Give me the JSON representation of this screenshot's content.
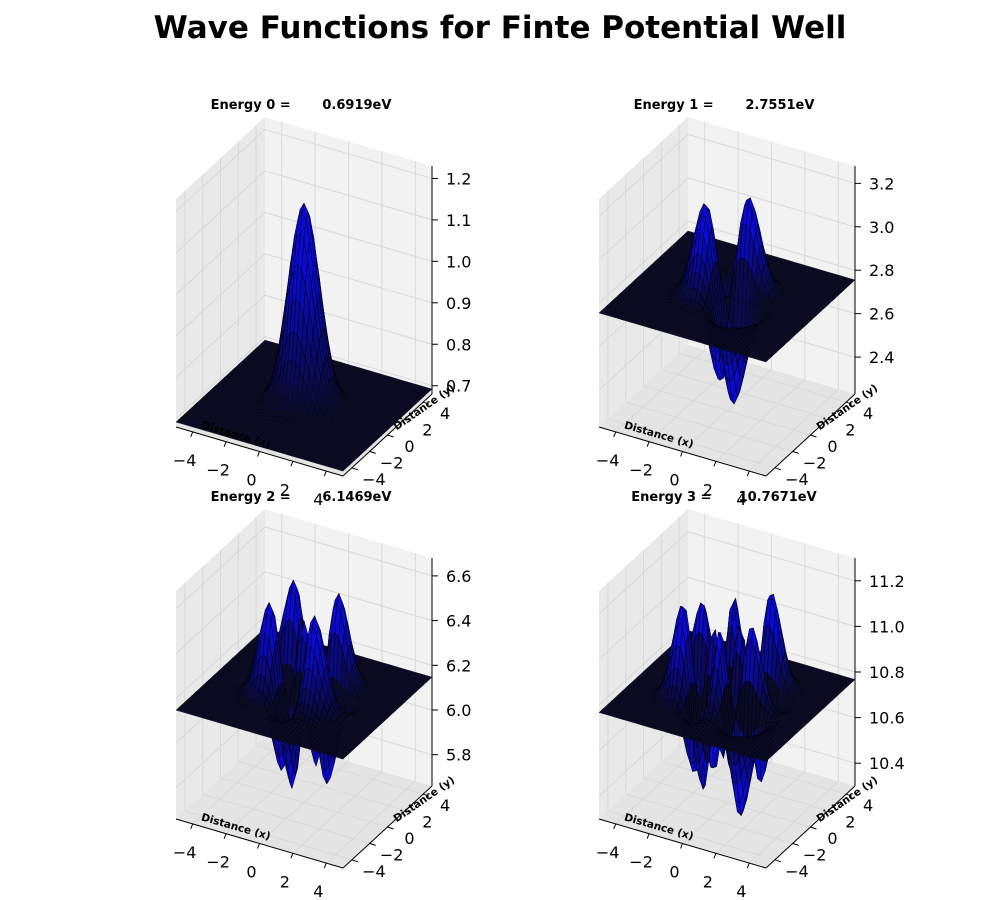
{
  "title": "Wave Functions for Finte Potential Well",
  "colors": {
    "surface": "#0a0ac8",
    "edge": "#000000",
    "pane": "#f2f2f2",
    "grid": "#d9d9d9"
  },
  "chart_data": [
    {
      "type": "surface3d",
      "title": "Energy 0 =       0.6919eV",
      "xlabel": "Distance (x)",
      "ylabel": "Distance (y)",
      "xticks": [
        "−4",
        "−2",
        "0",
        "2",
        "4"
      ],
      "yticks": [
        "−4",
        "−2",
        "0",
        "2",
        "4"
      ],
      "zticks": [
        "0.7",
        "0.8",
        "0.9",
        "1.0",
        "1.1",
        "1.2"
      ],
      "xlim": [
        -5,
        5
      ],
      "ylim": [
        -5,
        5
      ],
      "zlim": [
        0.68,
        1.23
      ],
      "energy_eV": 0.6919,
      "state": 0
    },
    {
      "type": "surface3d",
      "title": "Energy 1 =       2.7551eV",
      "xlabel": "Distance (x)",
      "ylabel": "Distance (y)",
      "xticks": [
        "−4",
        "−2",
        "0",
        "2",
        "4"
      ],
      "yticks": [
        "−4",
        "−2",
        "0",
        "2",
        "4"
      ],
      "zticks": [
        "2.4",
        "2.6",
        "2.8",
        "3.0",
        "3.2"
      ],
      "xlim": [
        -5,
        5
      ],
      "ylim": [
        -5,
        5
      ],
      "zlim": [
        2.23,
        3.28
      ],
      "energy_eV": 2.7551,
      "state": 1
    },
    {
      "type": "surface3d",
      "title": "Energy 2 =       6.1469eV",
      "xlabel": "Distance (x)",
      "ylabel": "Distance (y)",
      "xticks": [
        "−4",
        "−2",
        "0",
        "2",
        "4"
      ],
      "yticks": [
        "−4",
        "−2",
        "0",
        "2",
        "4"
      ],
      "zticks": [
        "5.8",
        "6.0",
        "6.2",
        "6.4",
        "6.6"
      ],
      "xlim": [
        -5,
        5
      ],
      "ylim": [
        -5,
        5
      ],
      "zlim": [
        5.66,
        6.68
      ],
      "energy_eV": 6.1469,
      "state": 2
    },
    {
      "type": "surface3d",
      "title": "Energy 3 =      10.7671eV",
      "xlabel": "Distance (x)",
      "ylabel": "Distance (y)",
      "xticks": [
        "−4",
        "−2",
        "0",
        "2",
        "4"
      ],
      "yticks": [
        "−4",
        "−2",
        "0",
        "2",
        "4"
      ],
      "zticks": [
        "10.4",
        "10.6",
        "10.8",
        "11.0",
        "11.2"
      ],
      "xlim": [
        -5,
        5
      ],
      "ylim": [
        -5,
        5
      ],
      "zlim": [
        10.3,
        11.3
      ],
      "energy_eV": 10.7671,
      "state": 3
    }
  ]
}
